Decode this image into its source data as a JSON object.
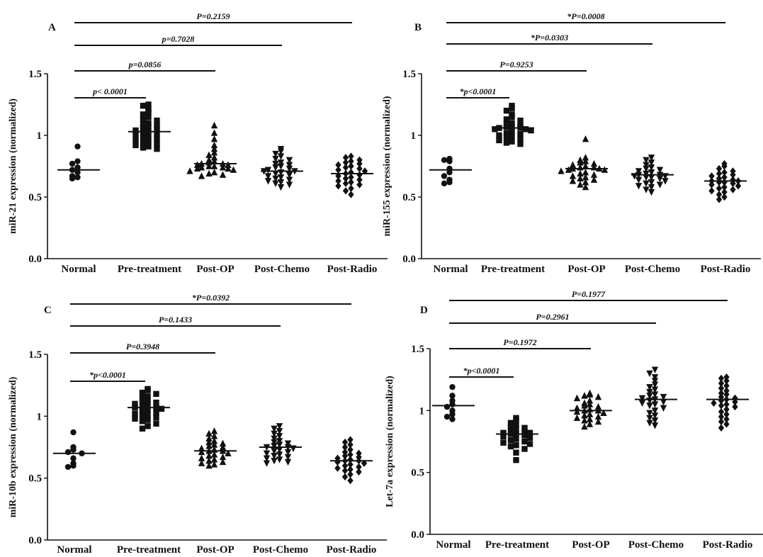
{
  "chart_data": [
    {
      "type": "scatter",
      "panel_label": "A",
      "ylabel": "miR-21 expression (normalized)",
      "ylim": [
        0,
        1.5
      ],
      "yticks": [
        "0.0",
        "0.5",
        "1",
        "1.5"
      ],
      "categories": [
        "Normal",
        "Pre-treatment",
        "Post-OP",
        "Post-Chemo",
        "Post-Radio"
      ],
      "markers": [
        "circle",
        "square",
        "triangle-up",
        "triangle-down",
        "diamond"
      ],
      "medians": [
        0.72,
        1.03,
        0.77,
        0.71,
        0.69
      ],
      "groups": [
        [
          0.91,
          0.79,
          0.77,
          0.74,
          0.72,
          0.7,
          0.67,
          0.66,
          0.65
        ],
        [
          1.25,
          1.24,
          1.21,
          1.19,
          1.17,
          1.15,
          1.13,
          1.12,
          1.1,
          1.09,
          1.08,
          1.07,
          1.06,
          1.05,
          1.04,
          1.03,
          1.02,
          1.01,
          1.0,
          0.99,
          0.98,
          0.97,
          0.96,
          0.95,
          0.94,
          0.93,
          0.92,
          0.91,
          0.9,
          0.89
        ],
        [
          1.08,
          1.02,
          0.97,
          0.92,
          0.89,
          0.86,
          0.84,
          0.82,
          0.8,
          0.79,
          0.78,
          0.77,
          0.77,
          0.76,
          0.76,
          0.75,
          0.75,
          0.74,
          0.74,
          0.73,
          0.73,
          0.72,
          0.71,
          0.7,
          0.69,
          0.68,
          0.67
        ],
        [
          0.89,
          0.87,
          0.85,
          0.83,
          0.81,
          0.8,
          0.78,
          0.77,
          0.76,
          0.75,
          0.74,
          0.73,
          0.72,
          0.71,
          0.71,
          0.7,
          0.69,
          0.68,
          0.67,
          0.66,
          0.65,
          0.64,
          0.63,
          0.62,
          0.61,
          0.6,
          0.58
        ],
        [
          0.83,
          0.82,
          0.8,
          0.79,
          0.78,
          0.77,
          0.76,
          0.75,
          0.74,
          0.73,
          0.72,
          0.71,
          0.7,
          0.69,
          0.68,
          0.67,
          0.66,
          0.65,
          0.64,
          0.63,
          0.62,
          0.61,
          0.6,
          0.59,
          0.57,
          0.55,
          0.52
        ]
      ],
      "comparisons": [
        {
          "to": 4,
          "label": "P=0.2159"
        },
        {
          "to": 3,
          "label": "p=0.7028"
        },
        {
          "to": 2,
          "label": "p=0.0856"
        },
        {
          "to": 1,
          "label": "p< 0.0001"
        }
      ]
    },
    {
      "type": "scatter",
      "panel_label": "B",
      "ylabel": "miR-155 expression (normalized)",
      "ylim": [
        0,
        1.5
      ],
      "yticks": [
        "0.0",
        "0.5",
        "1",
        "1.5"
      ],
      "categories": [
        "Normal",
        "Pre-treatment",
        "Post-OP",
        "Post-Chemo",
        "Post-Radio"
      ],
      "markers": [
        "circle",
        "square",
        "triangle-up",
        "triangle-down",
        "diamond"
      ],
      "medians": [
        0.72,
        1.06,
        0.73,
        0.68,
        0.63
      ],
      "groups": [
        [
          0.81,
          0.8,
          0.79,
          0.73,
          0.7,
          0.67,
          0.64,
          0.62,
          0.61
        ],
        [
          1.24,
          1.22,
          1.2,
          1.17,
          1.15,
          1.13,
          1.12,
          1.1,
          1.09,
          1.08,
          1.07,
          1.07,
          1.06,
          1.06,
          1.05,
          1.05,
          1.04,
          1.03,
          1.02,
          1.01,
          1.0,
          0.99,
          0.98,
          0.97,
          0.96,
          0.95,
          0.94,
          0.93
        ],
        [
          0.97,
          0.82,
          0.8,
          0.79,
          0.78,
          0.77,
          0.76,
          0.75,
          0.74,
          0.74,
          0.73,
          0.73,
          0.72,
          0.72,
          0.71,
          0.7,
          0.69,
          0.68,
          0.67,
          0.66,
          0.65,
          0.64,
          0.63,
          0.62,
          0.6,
          0.58
        ],
        [
          0.82,
          0.8,
          0.78,
          0.76,
          0.74,
          0.73,
          0.72,
          0.71,
          0.7,
          0.69,
          0.68,
          0.68,
          0.67,
          0.67,
          0.66,
          0.66,
          0.65,
          0.64,
          0.63,
          0.62,
          0.61,
          0.6,
          0.59,
          0.58,
          0.56,
          0.54
        ],
        [
          0.77,
          0.75,
          0.73,
          0.71,
          0.7,
          0.69,
          0.68,
          0.67,
          0.66,
          0.65,
          0.64,
          0.63,
          0.63,
          0.62,
          0.62,
          0.61,
          0.6,
          0.59,
          0.58,
          0.57,
          0.56,
          0.55,
          0.54,
          0.52,
          0.5,
          0.48
        ]
      ],
      "comparisons": [
        {
          "to": 4,
          "label": "*P=0.0008"
        },
        {
          "to": 3,
          "label": "*P=0.0303"
        },
        {
          "to": 2,
          "label": "P=0.9253"
        },
        {
          "to": 1,
          "label": "*p<0.0001"
        }
      ]
    },
    {
      "type": "scatter",
      "panel_label": "C",
      "ylabel": "miR-10b expression (normalized)",
      "ylim": [
        0,
        1.5
      ],
      "yticks": [
        "0.0",
        "0.5",
        "1",
        "1.5"
      ],
      "categories": [
        "Normal",
        "Pre-treatment",
        "Post-OP",
        "Post-Chemo",
        "Post-Radio"
      ],
      "markers": [
        "circle",
        "square",
        "triangle-up",
        "triangle-down",
        "diamond"
      ],
      "medians": [
        0.7,
        1.07,
        0.72,
        0.75,
        0.64
      ],
      "groups": [
        [
          0.87,
          0.75,
          0.73,
          0.71,
          0.7,
          0.66,
          0.62,
          0.6,
          0.59
        ],
        [
          1.22,
          1.21,
          1.19,
          1.18,
          1.16,
          1.15,
          1.13,
          1.12,
          1.11,
          1.1,
          1.09,
          1.08,
          1.07,
          1.07,
          1.06,
          1.05,
          1.04,
          1.03,
          1.02,
          1.01,
          1.0,
          0.99,
          0.98,
          0.97,
          0.96,
          0.94,
          0.92,
          0.9
        ],
        [
          0.88,
          0.86,
          0.84,
          0.82,
          0.8,
          0.79,
          0.78,
          0.77,
          0.76,
          0.75,
          0.74,
          0.73,
          0.72,
          0.72,
          0.71,
          0.7,
          0.69,
          0.68,
          0.67,
          0.66,
          0.65,
          0.64,
          0.63,
          0.62,
          0.61,
          0.6
        ],
        [
          0.92,
          0.9,
          0.88,
          0.86,
          0.84,
          0.82,
          0.8,
          0.79,
          0.78,
          0.77,
          0.76,
          0.75,
          0.75,
          0.74,
          0.73,
          0.72,
          0.71,
          0.7,
          0.69,
          0.68,
          0.67,
          0.66,
          0.65,
          0.64,
          0.63,
          0.62
        ],
        [
          0.81,
          0.79,
          0.77,
          0.75,
          0.73,
          0.71,
          0.7,
          0.69,
          0.68,
          0.67,
          0.66,
          0.65,
          0.64,
          0.64,
          0.63,
          0.62,
          0.61,
          0.6,
          0.59,
          0.58,
          0.57,
          0.56,
          0.55,
          0.53,
          0.51,
          0.48
        ]
      ],
      "comparisons": [
        {
          "to": 4,
          "label": "*P=0.0392"
        },
        {
          "to": 3,
          "label": "P=0.1433"
        },
        {
          "to": 2,
          "label": "P=0.3948"
        },
        {
          "to": 1,
          "label": "*p<0.0001"
        }
      ]
    },
    {
      "type": "scatter",
      "panel_label": "D",
      "ylabel": "Let-7a expression (normalized)",
      "ylim": [
        0,
        1.5
      ],
      "yticks": [
        "0.0",
        "0.5",
        "1",
        "1.5"
      ],
      "categories": [
        "Normal",
        "Pre-treatment",
        "Post-OP",
        "Post-Chemo",
        "Post-Radio"
      ],
      "markers": [
        "circle",
        "square",
        "triangle-up",
        "triangle-down",
        "diamond"
      ],
      "medians": [
        1.04,
        0.81,
        1.0,
        1.09,
        1.09
      ],
      "groups": [
        [
          1.19,
          1.12,
          1.08,
          1.05,
          1.03,
          1.0,
          0.97,
          0.95,
          0.93
        ],
        [
          0.94,
          0.92,
          0.9,
          0.88,
          0.87,
          0.86,
          0.85,
          0.84,
          0.83,
          0.82,
          0.82,
          0.81,
          0.81,
          0.8,
          0.79,
          0.78,
          0.77,
          0.76,
          0.75,
          0.74,
          0.73,
          0.72,
          0.71,
          0.69,
          0.66,
          0.6
        ],
        [
          1.14,
          1.13,
          1.12,
          1.11,
          1.1,
          1.08,
          1.06,
          1.05,
          1.04,
          1.03,
          1.02,
          1.01,
          1.0,
          1.0,
          0.99,
          0.98,
          0.97,
          0.96,
          0.95,
          0.94,
          0.93,
          0.92,
          0.91,
          0.89,
          0.87
        ],
        [
          1.33,
          1.3,
          1.27,
          1.24,
          1.21,
          1.19,
          1.17,
          1.15,
          1.13,
          1.12,
          1.11,
          1.1,
          1.09,
          1.08,
          1.07,
          1.06,
          1.05,
          1.04,
          1.02,
          1.0,
          0.98,
          0.96,
          0.94,
          0.92,
          0.9,
          0.88
        ],
        [
          1.27,
          1.26,
          1.24,
          1.22,
          1.2,
          1.18,
          1.16,
          1.14,
          1.13,
          1.11,
          1.1,
          1.09,
          1.08,
          1.07,
          1.06,
          1.05,
          1.04,
          1.03,
          1.01,
          0.99,
          0.97,
          0.95,
          0.93,
          0.91,
          0.89,
          0.86
        ]
      ],
      "comparisons": [
        {
          "to": 4,
          "label": "P=0.1977"
        },
        {
          "to": 3,
          "label": "P=0.2961"
        },
        {
          "to": 2,
          "label": "P=0.1972"
        },
        {
          "to": 1,
          "label": "*p<0.0001"
        }
      ]
    }
  ]
}
